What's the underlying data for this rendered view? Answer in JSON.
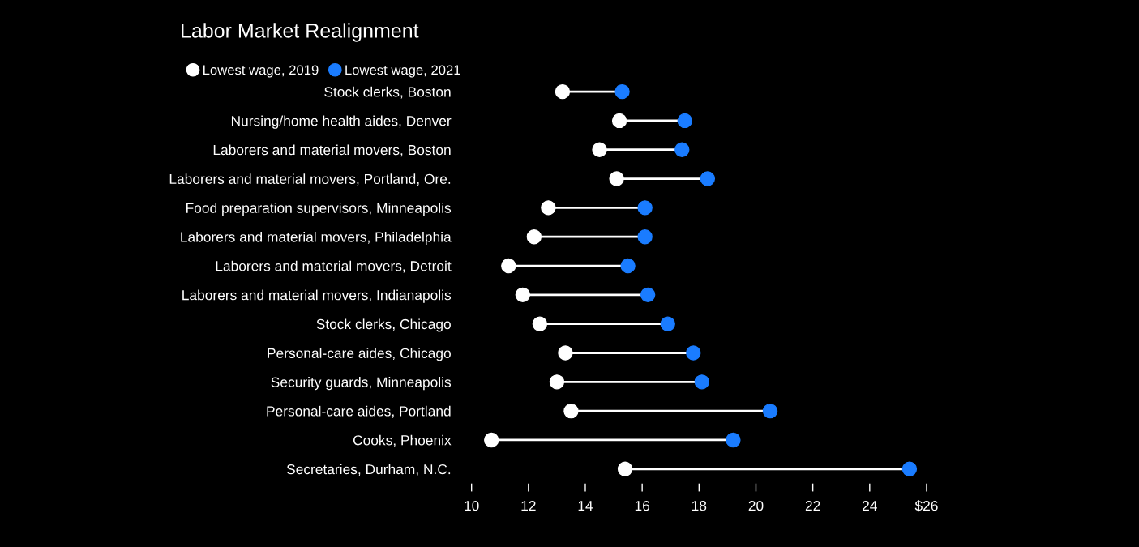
{
  "chart_data": {
    "type": "scatter",
    "orientation": "horizontal",
    "title": "Labor Market Realignment",
    "categories": [
      "Stock clerks, Boston",
      "Nursing/home health aides, Denver",
      "Laborers and material movers, Boston",
      "Laborers and material movers, Portland, Ore.",
      "Food preparation supervisors, Minneapolis",
      "Laborers and material movers, Philadelphia",
      "Laborers and material movers, Detroit",
      "Laborers and material movers, Indianapolis",
      "Stock clerks, Chicago",
      "Personal-care aides, Chicago",
      "Security guards, Minneapolis",
      "Personal-care aides, Portland",
      "Cooks, Phoenix",
      "Secretaries, Durham, N.C."
    ],
    "series": [
      {
        "name": "Lowest wage, 2019",
        "color": "#ffffff",
        "values": [
          13.2,
          15.2,
          14.5,
          15.1,
          12.7,
          12.2,
          11.3,
          11.8,
          12.4,
          13.3,
          13.0,
          13.5,
          10.7,
          15.4
        ]
      },
      {
        "name": "Lowest wage, 2021",
        "color": "#1a7cff",
        "values": [
          15.3,
          17.5,
          17.4,
          18.3,
          16.1,
          16.1,
          15.5,
          16.2,
          16.9,
          17.8,
          18.1,
          20.5,
          19.2,
          25.4
        ]
      }
    ],
    "xlim": [
      10,
      26
    ],
    "xticks": [
      10,
      12,
      14,
      16,
      18,
      20,
      22,
      24,
      {
        "value": 26,
        "label": "$26"
      }
    ],
    "marker": "circle",
    "legend": "top left",
    "grid": false
  }
}
